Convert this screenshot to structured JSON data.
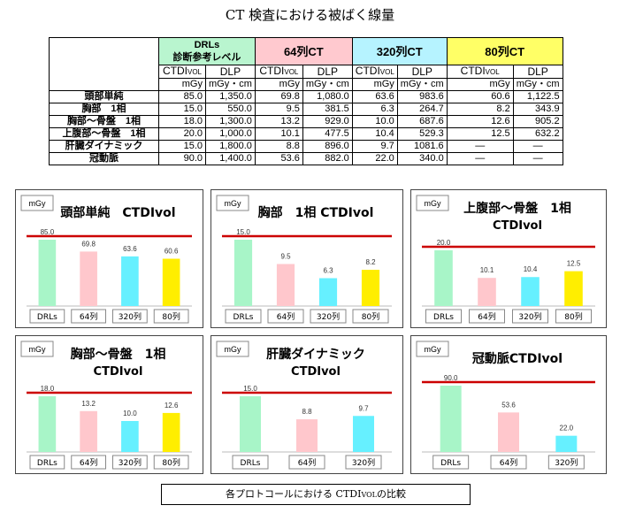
{
  "title": "CT 検査における被ばく線量",
  "table": {
    "headers": {
      "drls": [
        "DRLs",
        "診断参考レベル"
      ],
      "ct64": "64列CT",
      "ct320": "320列CT",
      "ct80": "80列CT"
    },
    "subheader": {
      "ctdi": "CTDI",
      "ctdi_sub": "VOL",
      "dlp": "DLP"
    },
    "units": {
      "ctdi": "mGy",
      "dlp": "mGy・cm"
    },
    "rows": [
      {
        "label": "頭部単純",
        "cells": [
          "85.0",
          "1,350.0",
          "69.8",
          "1,080.0",
          "63.6",
          "983.6",
          "60.6",
          "1,122.5"
        ]
      },
      {
        "label": "胸部　1相",
        "cells": [
          "15.0",
          "550.0",
          "9.5",
          "381.5",
          "6.3",
          "264.7",
          "8.2",
          "343.9"
        ]
      },
      {
        "label": "胸部～骨盤　1相",
        "cells": [
          "18.0",
          "1,300.0",
          "13.2",
          "929.0",
          "10.0",
          "687.6",
          "12.6",
          "905.2"
        ]
      },
      {
        "label": "上腹部～骨盤　1相",
        "cells": [
          "20.0",
          "1,000.0",
          "10.1",
          "477.5",
          "10.4",
          "529.3",
          "12.5",
          "632.2"
        ]
      },
      {
        "label": "肝臓ダイナミック",
        "cells": [
          "15.0",
          "1,800.0",
          "8.8",
          "896.0",
          "9.7",
          "1081.6",
          "―",
          "―"
        ]
      },
      {
        "label": "冠動脈",
        "cells": [
          "90.0",
          "1,400.0",
          "53.6",
          "882.0",
          "22.0",
          "340.0",
          "―",
          "―"
        ]
      }
    ]
  },
  "colors": {
    "drls": "#a8f5c8",
    "ct64": "#ffc7cc",
    "ct320": "#66f0ff",
    "ct80": "#ffee00",
    "line": "#cc0000"
  },
  "chart_data": [
    {
      "type": "bar",
      "title": "頭部単純　CTDIvol",
      "unit": "mGy",
      "categories": [
        "DRLs",
        "64列",
        "320列",
        "80列"
      ],
      "values": [
        85.0,
        69.8,
        63.6,
        60.6
      ],
      "labels": [
        "85.0",
        "69.8",
        "63.6",
        "60.6"
      ],
      "reference": 85.0
    },
    {
      "type": "bar",
      "title": "胸部　1相  CTDIvol",
      "unit": "mGy",
      "categories": [
        "DRLs",
        "64列",
        "320列",
        "80列"
      ],
      "values": [
        15.0,
        9.5,
        6.3,
        8.2
      ],
      "labels": [
        "15.0",
        "9.5",
        "6.3",
        "8.2"
      ],
      "reference": 15.0
    },
    {
      "type": "bar",
      "title": "上腹部～骨盤　1相",
      "title2": "CTDIvol",
      "unit": "mGy",
      "categories": [
        "DRLs",
        "64列",
        "320列",
        "80列"
      ],
      "values": [
        20.0,
        10.1,
        10.4,
        12.5
      ],
      "labels": [
        "20.0",
        "10.1",
        "10.4",
        "12.5"
      ],
      "reference": 20.0
    },
    {
      "type": "bar",
      "title": "胸部～骨盤　1相",
      "title2": "CTDIvol",
      "unit": "mGy",
      "categories": [
        "DRLs",
        "64列",
        "320列",
        "80列"
      ],
      "values": [
        18.0,
        13.2,
        10.0,
        12.6
      ],
      "labels": [
        "18.0",
        "13.2",
        "10.0",
        "12.6"
      ],
      "reference": 18.0
    },
    {
      "type": "bar",
      "title": "肝臓ダイナミック",
      "title2": "CTDIvol",
      "unit": "mGy",
      "categories": [
        "DRLs",
        "64列",
        "320列"
      ],
      "values": [
        15.0,
        8.8,
        9.7
      ],
      "labels": [
        "15.0",
        "8.8",
        "9.7"
      ],
      "reference": 15.0
    },
    {
      "type": "bar",
      "title": "冠動脈CTDIvol",
      "unit": "mGy",
      "categories": [
        "DRLs",
        "64列",
        "320列"
      ],
      "values": [
        90.0,
        53.6,
        22.0
      ],
      "labels": [
        "90.0",
        "53.6",
        "22.0"
      ],
      "reference": 90.0
    }
  ],
  "caption": {
    "before": "各プロトコールにおける CTDI",
    "sub": "VOL",
    "after": "の比較"
  }
}
